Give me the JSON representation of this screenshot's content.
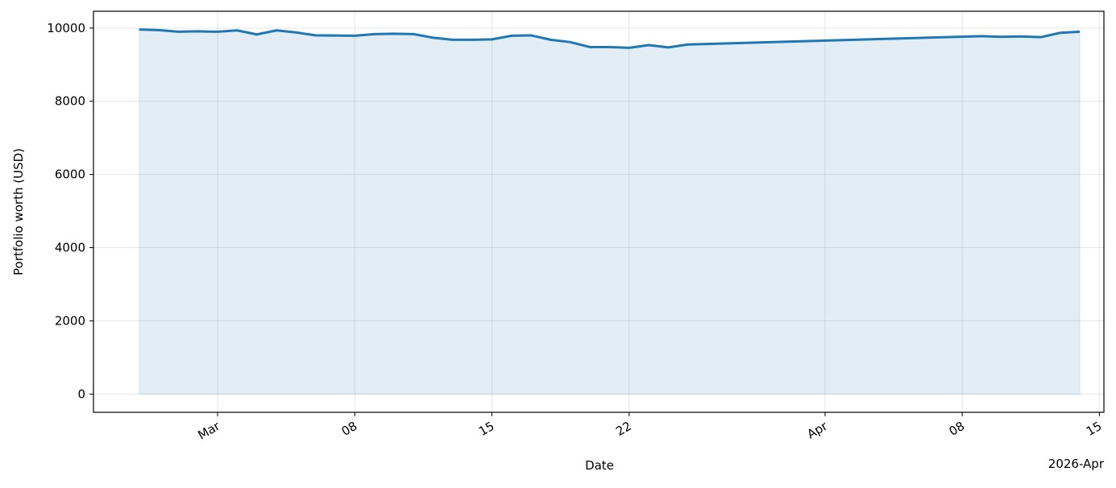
{
  "chart_data": {
    "type": "line",
    "xlabel": "Date",
    "ylabel": "Portfolio worth (USD)",
    "x_offset_label": "2026-Apr",
    "x": [
      "2026-02-25",
      "2026-02-26",
      "2026-02-27",
      "2026-02-28",
      "2026-03-01",
      "2026-03-02",
      "2026-03-03",
      "2026-03-04",
      "2026-03-05",
      "2026-03-06",
      "2026-03-07",
      "2026-03-08",
      "2026-03-09",
      "2026-03-10",
      "2026-03-11",
      "2026-03-12",
      "2026-03-13",
      "2026-03-14",
      "2026-03-15",
      "2026-03-16",
      "2026-03-17",
      "2026-03-18",
      "2026-03-19",
      "2026-03-20",
      "2026-03-21",
      "2026-03-22",
      "2026-03-23",
      "2026-03-24",
      "2026-03-25",
      "2026-04-09",
      "2026-04-10",
      "2026-04-11",
      "2026-04-12",
      "2026-04-13",
      "2026-04-14"
    ],
    "series": [
      {
        "name": "Portfolio worth",
        "color": "#1f77b4",
        "values": [
          9960,
          9945,
          9900,
          9910,
          9900,
          9935,
          9825,
          9935,
          9880,
          9800,
          9795,
          9790,
          9835,
          9845,
          9835,
          9735,
          9680,
          9680,
          9690,
          9790,
          9800,
          9680,
          9615,
          9480,
          9480,
          9460,
          9535,
          9470,
          9550,
          9780,
          9760,
          9770,
          9750,
          9870,
          9900
        ]
      }
    ],
    "fill": true,
    "xlim": [
      "2026-02-22T16:00",
      "2026-04-15T05:30"
    ],
    "xticks": [
      {
        "value": "2026-03-01",
        "label": "Mar"
      },
      {
        "value": "2026-03-08",
        "label": "08"
      },
      {
        "value": "2026-03-15",
        "label": "15"
      },
      {
        "value": "2026-03-22",
        "label": "22"
      },
      {
        "value": "2026-04-01",
        "label": "Apr"
      },
      {
        "value": "2026-04-08",
        "label": "08"
      },
      {
        "value": "2026-04-15",
        "label": "15"
      }
    ],
    "ylim": [
      -498,
      10458
    ],
    "yticks": [
      0,
      2000,
      4000,
      6000,
      8000,
      10000
    ],
    "grid": true
  }
}
